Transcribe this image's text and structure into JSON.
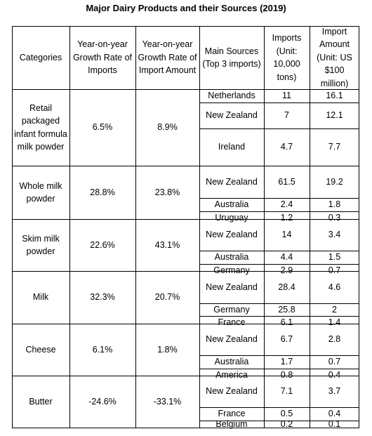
{
  "chart_data": {
    "type": "table",
    "title": "Major Dairy Products and their Sources (2019)",
    "headers": [
      "Categories",
      "Year-on-year Growth Rate of Imports",
      "Year-on-year Growth Rate of Import Amount",
      "Main Sources (Top 3 imports)",
      "Imports (Unit: 10,000 tons)",
      "Import Amount (Unit: US $100 million)"
    ],
    "rows": [
      {
        "category": "Retail packaged infant formula milk powder",
        "import_growth": "6.5%",
        "amount_growth": "8.9%",
        "sources": [
          {
            "country": "Netherlands",
            "imports": "11",
            "amount": "16.1"
          },
          {
            "country": "New Zealand",
            "imports": "7",
            "amount": "12.1"
          },
          {
            "country": "Ireland",
            "imports": "4.7",
            "amount": "7.7"
          }
        ]
      },
      {
        "category": "Whole milk powder",
        "import_growth": "28.8%",
        "amount_growth": "23.8%",
        "sources": [
          {
            "country": "New Zealand",
            "imports": "61.5",
            "amount": "19.2"
          },
          {
            "country": "Australia",
            "imports": "2.4",
            "amount": "1.8"
          },
          {
            "country": "Uruguay",
            "imports": "1.2",
            "amount": "0.3"
          }
        ]
      },
      {
        "category": "Skim milk powder",
        "import_growth": "22.6%",
        "amount_growth": "43.1%",
        "sources": [
          {
            "country": "New Zealand",
            "imports": "14",
            "amount": "3.4"
          },
          {
            "country": "Australia",
            "imports": "4.4",
            "amount": "1.5"
          },
          {
            "country": "Germany",
            "imports": "2.9",
            "amount": "0.7"
          }
        ]
      },
      {
        "category": "Milk",
        "import_growth": "32.3%",
        "amount_growth": "20.7%",
        "sources": [
          {
            "country": "New Zealand",
            "imports": "28.4",
            "amount": "4.6"
          },
          {
            "country": "Germany",
            "imports": "25.8",
            "amount": "2"
          },
          {
            "country": "France",
            "imports": "6.1",
            "amount": "1.4"
          }
        ]
      },
      {
        "category": "Cheese",
        "import_growth": "6.1%",
        "amount_growth": "1.8%",
        "sources": [
          {
            "country": "New Zealand",
            "imports": "6.7",
            "amount": "2.8"
          },
          {
            "country": "Australia",
            "imports": "1.7",
            "amount": "0.7"
          },
          {
            "country": "America",
            "imports": "0.8",
            "amount": "0.4"
          }
        ]
      },
      {
        "category": "Butter",
        "import_growth": "-24.6%",
        "amount_growth": "-33.1%",
        "sources": [
          {
            "country": "New Zealand",
            "imports": "7.1",
            "amount": "3.7"
          },
          {
            "country": "France",
            "imports": "0.5",
            "amount": "0.4"
          },
          {
            "country": "Belgium",
            "imports": "0.2",
            "amount": "0.1"
          }
        ]
      }
    ]
  }
}
